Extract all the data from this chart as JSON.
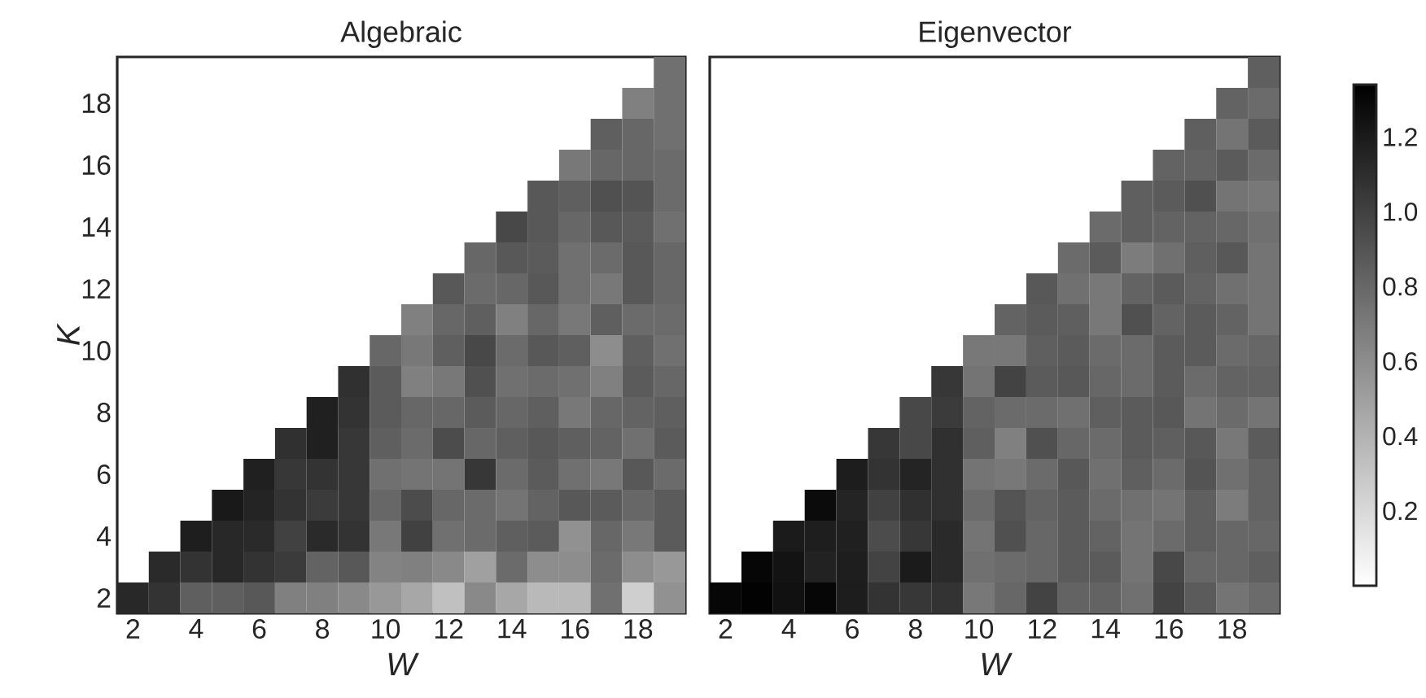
{
  "chart_data": [
    {
      "type": "heatmap",
      "title": "Algebraic",
      "xlabel": "W",
      "ylabel": "K",
      "categories": [
        "2",
        null,
        "4",
        null,
        "6",
        null,
        "8",
        null,
        "10",
        null,
        "12",
        null,
        "14",
        null,
        "16",
        null,
        "18",
        null
      ],
      "y_categories": [
        null,
        "18",
        null,
        "16",
        null,
        "14",
        null,
        "12",
        null,
        "10",
        null,
        "8",
        null,
        "6",
        null,
        "4",
        null,
        "2"
      ],
      "clim": [
        0,
        1.34
      ],
      "cticks": [
        0.2,
        0.6,
        {
          "value": 1.0,
          "label": "1.0"
        }
      ],
      "cells": [
        [
          null,
          null,
          null,
          null,
          null,
          null,
          null,
          null,
          null,
          null,
          null,
          null,
          null,
          null,
          null,
          null,
          null,
          0.75
        ],
        [
          null,
          null,
          null,
          null,
          null,
          null,
          null,
          null,
          null,
          null,
          null,
          null,
          null,
          null,
          null,
          null,
          0.67,
          0.75
        ],
        [
          null,
          null,
          null,
          null,
          null,
          null,
          null,
          null,
          null,
          null,
          null,
          null,
          null,
          null,
          null,
          0.84,
          0.8,
          0.75
        ],
        [
          null,
          null,
          null,
          null,
          null,
          null,
          null,
          null,
          null,
          null,
          null,
          null,
          null,
          null,
          0.71,
          0.8,
          0.8,
          0.78
        ],
        [
          null,
          null,
          null,
          null,
          null,
          null,
          null,
          null,
          null,
          null,
          null,
          null,
          null,
          0.88,
          0.84,
          0.92,
          0.9,
          0.78
        ],
        [
          null,
          null,
          null,
          null,
          null,
          null,
          null,
          null,
          null,
          null,
          null,
          null,
          0.96,
          0.88,
          0.8,
          0.88,
          0.86,
          0.75
        ],
        [
          null,
          null,
          null,
          null,
          null,
          null,
          null,
          null,
          null,
          null,
          null,
          0.8,
          0.88,
          0.86,
          0.75,
          0.78,
          0.88,
          0.8
        ],
        [
          null,
          null,
          null,
          null,
          null,
          null,
          null,
          null,
          null,
          null,
          0.88,
          0.78,
          0.8,
          0.88,
          0.75,
          0.71,
          0.88,
          0.8
        ],
        [
          null,
          null,
          null,
          null,
          null,
          null,
          null,
          null,
          null,
          0.67,
          0.8,
          0.84,
          0.67,
          0.8,
          0.71,
          0.84,
          0.78,
          0.78
        ],
        [
          null,
          null,
          null,
          null,
          null,
          null,
          null,
          null,
          0.8,
          0.71,
          0.84,
          0.96,
          0.78,
          0.88,
          0.84,
          0.6,
          0.84,
          0.75
        ],
        [
          null,
          null,
          null,
          null,
          null,
          null,
          null,
          1.09,
          0.86,
          0.67,
          0.71,
          0.92,
          0.75,
          0.78,
          0.75,
          0.67,
          0.86,
          0.8
        ],
        [
          null,
          null,
          null,
          null,
          null,
          null,
          1.17,
          1.07,
          0.86,
          0.8,
          0.8,
          0.86,
          0.8,
          0.84,
          0.71,
          0.8,
          0.82,
          0.84
        ],
        [
          null,
          null,
          null,
          null,
          null,
          1.09,
          1.17,
          1.05,
          0.84,
          0.78,
          0.94,
          0.8,
          0.84,
          0.88,
          0.84,
          0.82,
          0.75,
          0.86
        ],
        [
          null,
          null,
          null,
          null,
          1.17,
          1.05,
          1.07,
          1.05,
          0.75,
          0.73,
          0.73,
          1.05,
          0.78,
          0.86,
          0.75,
          0.71,
          0.88,
          0.78
        ],
        [
          null,
          null,
          null,
          1.21,
          1.15,
          1.07,
          1.03,
          1.05,
          0.8,
          0.94,
          0.8,
          0.78,
          0.73,
          0.82,
          0.88,
          0.86,
          0.8,
          0.86
        ],
        [
          null,
          null,
          1.18,
          1.13,
          1.12,
          1.0,
          1.12,
          1.07,
          0.71,
          1.0,
          0.75,
          0.78,
          0.84,
          0.86,
          0.58,
          0.8,
          0.71,
          0.86
        ],
        [
          null,
          1.12,
          1.07,
          1.13,
          1.07,
          1.03,
          0.82,
          0.88,
          0.65,
          0.67,
          0.62,
          0.5,
          0.78,
          0.6,
          0.6,
          0.78,
          0.6,
          0.54
        ],
        [
          1.13,
          1.07,
          0.84,
          0.84,
          0.88,
          0.67,
          0.67,
          0.62,
          0.54,
          0.46,
          0.33,
          0.62,
          0.46,
          0.37,
          0.37,
          0.75,
          0.25,
          0.58
        ]
      ]
    },
    {
      "type": "heatmap",
      "title": "Eigenvector",
      "xlabel": "W",
      "tick_labels": "x",
      "categories": [
        "2",
        null,
        "4",
        null,
        "6",
        null,
        "8",
        null,
        "10",
        null,
        "12",
        null,
        "14",
        null,
        "16",
        null,
        "18",
        null
      ],
      "y_categories": [
        null,
        "18",
        null,
        "16",
        null,
        "14",
        null,
        "12",
        null,
        "10",
        null,
        "8",
        null,
        "6",
        null,
        "4",
        null,
        "2"
      ],
      "clim": [
        0,
        1.34
      ],
      "cticks": [
        0.4,
        0.8,
        1.2
      ],
      "cells": [
        [
          null,
          null,
          null,
          null,
          null,
          null,
          null,
          null,
          null,
          null,
          null,
          null,
          null,
          null,
          null,
          null,
          null,
          0.84
        ],
        [
          null,
          null,
          null,
          null,
          null,
          null,
          null,
          null,
          null,
          null,
          null,
          null,
          null,
          null,
          null,
          null,
          0.82,
          0.78
        ],
        [
          null,
          null,
          null,
          null,
          null,
          null,
          null,
          null,
          null,
          null,
          null,
          null,
          null,
          null,
          null,
          0.84,
          0.73,
          0.86
        ],
        [
          null,
          null,
          null,
          null,
          null,
          null,
          null,
          null,
          null,
          null,
          null,
          null,
          null,
          null,
          0.82,
          0.82,
          0.86,
          0.78
        ],
        [
          null,
          null,
          null,
          null,
          null,
          null,
          null,
          null,
          null,
          null,
          null,
          null,
          null,
          0.84,
          0.86,
          0.92,
          0.73,
          0.71
        ],
        [
          null,
          null,
          null,
          null,
          null,
          null,
          null,
          null,
          null,
          null,
          null,
          null,
          0.78,
          0.84,
          0.82,
          0.82,
          0.8,
          0.75
        ],
        [
          null,
          null,
          null,
          null,
          null,
          null,
          null,
          null,
          null,
          null,
          null,
          0.78,
          0.86,
          0.69,
          0.75,
          0.84,
          0.88,
          0.73
        ],
        [
          null,
          null,
          null,
          null,
          null,
          null,
          null,
          null,
          null,
          null,
          0.88,
          0.75,
          0.71,
          0.82,
          0.86,
          0.82,
          0.75,
          0.73
        ],
        [
          null,
          null,
          null,
          null,
          null,
          null,
          null,
          null,
          null,
          0.82,
          0.86,
          0.84,
          0.71,
          0.92,
          0.82,
          0.86,
          0.82,
          0.73
        ],
        [
          null,
          null,
          null,
          null,
          null,
          null,
          null,
          null,
          0.71,
          0.71,
          0.84,
          0.86,
          0.78,
          0.78,
          0.86,
          0.86,
          0.78,
          0.8
        ],
        [
          null,
          null,
          null,
          null,
          null,
          null,
          null,
          1.05,
          0.73,
          0.99,
          0.86,
          0.88,
          0.8,
          0.78,
          0.86,
          0.78,
          0.82,
          0.82
        ],
        [
          null,
          null,
          null,
          null,
          null,
          null,
          0.96,
          1.03,
          0.82,
          0.78,
          0.78,
          0.75,
          0.84,
          0.86,
          0.88,
          0.73,
          0.78,
          0.73
        ],
        [
          null,
          null,
          null,
          null,
          null,
          1.05,
          0.96,
          1.09,
          0.84,
          0.67,
          0.92,
          0.8,
          0.78,
          0.86,
          0.84,
          0.88,
          0.71,
          0.86
        ],
        [
          null,
          null,
          null,
          null,
          1.19,
          1.07,
          1.15,
          1.09,
          0.73,
          0.71,
          0.78,
          0.88,
          0.75,
          0.84,
          0.78,
          0.9,
          0.75,
          0.82
        ],
        [
          null,
          null,
          null,
          1.28,
          1.15,
          1.0,
          1.09,
          1.09,
          0.78,
          0.9,
          0.82,
          0.86,
          0.78,
          0.75,
          0.73,
          0.84,
          0.69,
          0.82
        ],
        [
          null,
          null,
          1.2,
          1.18,
          1.17,
          0.94,
          1.05,
          1.12,
          0.73,
          0.92,
          0.8,
          0.86,
          0.82,
          0.73,
          0.78,
          0.84,
          0.8,
          0.8
        ],
        [
          null,
          1.31,
          1.24,
          1.16,
          1.18,
          0.99,
          1.2,
          1.12,
          0.75,
          0.78,
          0.8,
          0.86,
          0.86,
          0.73,
          0.96,
          0.8,
          0.8,
          0.84
        ],
        [
          1.31,
          1.33,
          1.25,
          1.31,
          1.19,
          1.07,
          1.05,
          1.07,
          0.71,
          0.8,
          0.99,
          0.82,
          0.82,
          0.75,
          0.99,
          0.86,
          0.73,
          0.78
        ]
      ]
    }
  ]
}
